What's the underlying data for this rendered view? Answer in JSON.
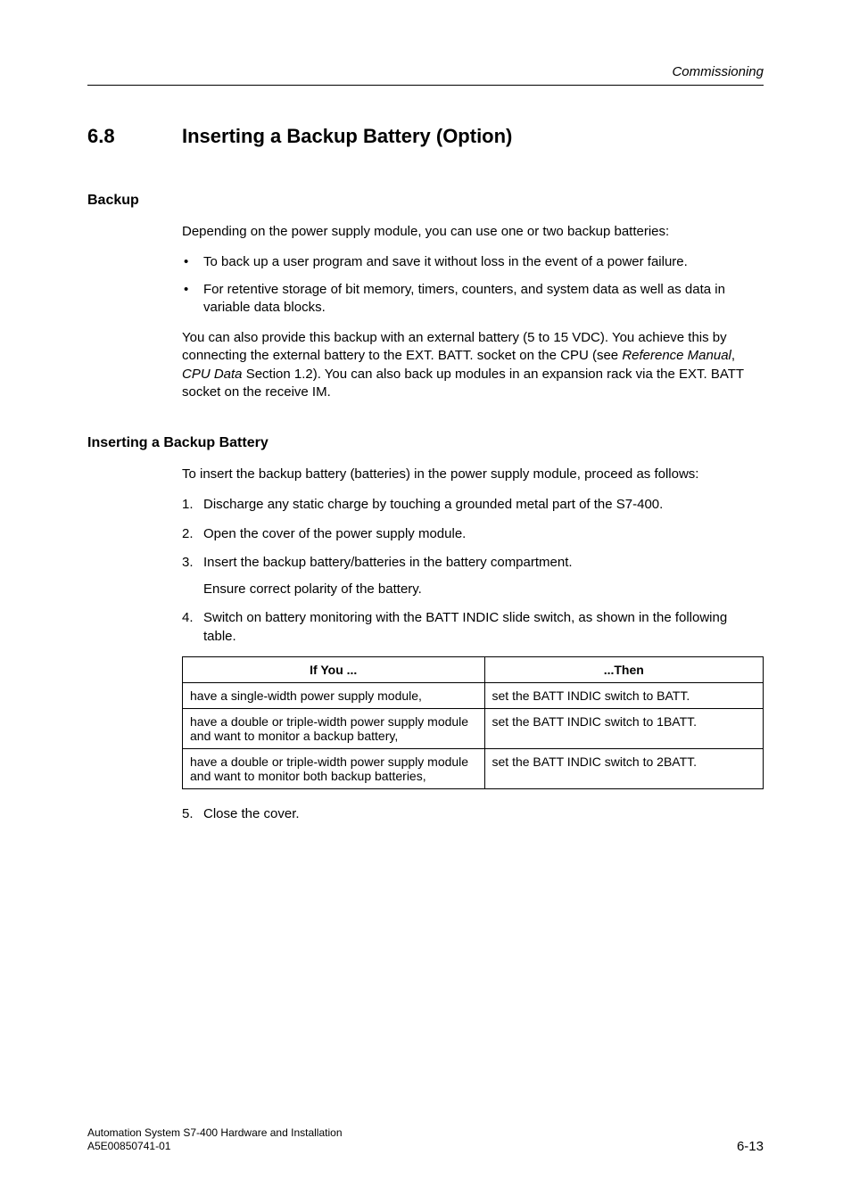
{
  "colors": {
    "background": "#ffffff",
    "text": "#000000",
    "rule": "#000000",
    "table_border": "#000000"
  },
  "typography": {
    "body_family": "Arial, Helvetica, sans-serif",
    "body_size_pt": 11,
    "h1_size_pt": 17,
    "h2_size_pt": 12,
    "footer_size_pt": 9
  },
  "running_head": "Commissioning",
  "h1": {
    "num": "6.8",
    "title": "Inserting a Backup Battery (Option)"
  },
  "backup": {
    "heading": "Backup",
    "intro": "Depending on the power supply module, you can use one or two backup batteries:",
    "bullets": [
      "To back up a user program and save it without loss in the event of a power failure.",
      "For retentive storage of bit memory, timers, counters, and system data as well as data in variable data blocks."
    ],
    "para2_pre": "You can also provide this backup with an external battery (5 to 15 VDC). You achieve this by connecting the external battery to the EXT. BATT. socket on the CPU (see ",
    "para2_ref1": "Reference Manual",
    "para2_mid": ", ",
    "para2_ref2": "CPU Data",
    "para2_post": " Section 1.2). You can also back up modules in an expansion rack via the EXT. BATT socket on the receive IM."
  },
  "insert": {
    "heading": "Inserting a Backup Battery",
    "intro": "To insert the backup battery (batteries) in the power supply module, proceed as follows:",
    "steps": {
      "s1": "Discharge any static charge by touching a grounded metal part of the S7-400.",
      "s2": "Open the cover of the power supply module.",
      "s3": "Insert the backup battery/batteries in the battery compartment.",
      "s3_sub": "Ensure correct polarity of the battery.",
      "s4": "Switch on battery monitoring with the BATT INDIC slide switch, as shown in the following table.",
      "s5": "Close the cover."
    }
  },
  "table": {
    "type": "table",
    "col_widths_pct": [
      52,
      48
    ],
    "border_color": "#000000",
    "font_size_pt": 10,
    "header": {
      "c1": "If You ...",
      "c2": "...Then"
    },
    "rows": [
      {
        "c1": "have a single-width power supply module,",
        "c2": "set the BATT INDIC switch to BATT."
      },
      {
        "c1": "have a double or triple-width power supply module and want to monitor\na backup battery,",
        "c2": "set the BATT INDIC switch to 1BATT."
      },
      {
        "c1": "have a double or triple-width power supply module and want to monitor both backup batteries,",
        "c2": "set the BATT INDIC switch to 2BATT."
      }
    ]
  },
  "footer": {
    "left_line1": "Automation System S7-400  Hardware and Installation",
    "left_line2": "A5E00850741-01",
    "right": "6-13"
  }
}
